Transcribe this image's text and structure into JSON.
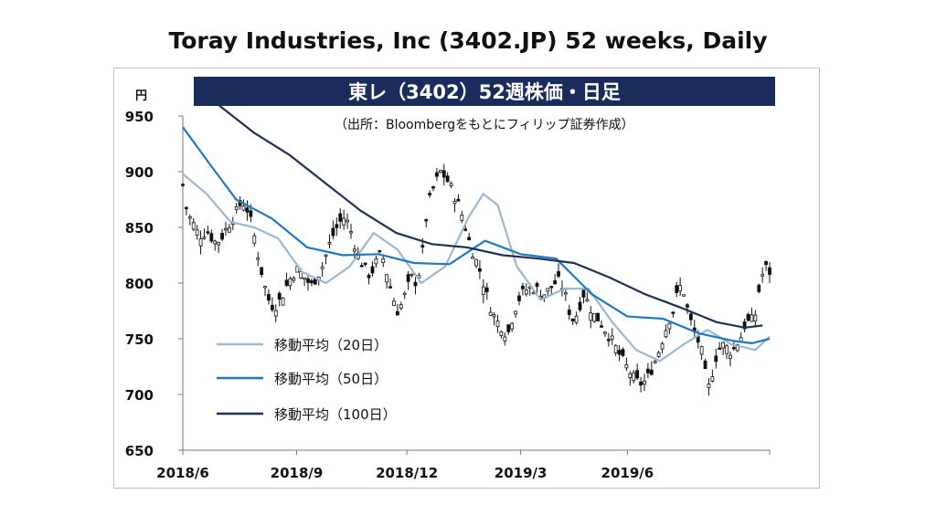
{
  "title": "Toray Industries, Inc (3402.JP) 52 weeks, Daily",
  "chart_data": {
    "type": "line",
    "title": "東レ（3402）52週株価・日足",
    "subtitle": "（出所：Bloombergをもとにフィリップ証券作成）",
    "ylabel": "円",
    "ylim": [
      650,
      950
    ],
    "yticks": [
      "650",
      "700",
      "750",
      "800",
      "850",
      "900",
      "950"
    ],
    "xticks": [
      "2018/6",
      "2018/9",
      "2018/12",
      "2019/3",
      "2019/6"
    ],
    "grid": false,
    "legend_position": "bottom-left",
    "price_points": [
      [
        0,
        888
      ],
      [
        1,
        862
      ],
      [
        2,
        855
      ],
      [
        3,
        846
      ],
      [
        4,
        842
      ],
      [
        5,
        848
      ],
      [
        6,
        841
      ],
      [
        7,
        836
      ],
      [
        8,
        840
      ],
      [
        9,
        848
      ],
      [
        10,
        855
      ],
      [
        11,
        862
      ],
      [
        12,
        870
      ],
      [
        13,
        872
      ],
      [
        14,
        860
      ],
      [
        15,
        842
      ],
      [
        16,
        820
      ],
      [
        17,
        800
      ],
      [
        18,
        785
      ],
      [
        19,
        778
      ],
      [
        20,
        782
      ],
      [
        21,
        790
      ],
      [
        22,
        800
      ],
      [
        23,
        808
      ],
      [
        24,
        812
      ],
      [
        25,
        808
      ],
      [
        26,
        802
      ],
      [
        27,
        798
      ],
      [
        28,
        805
      ],
      [
        29,
        812
      ],
      [
        30,
        825
      ],
      [
        31,
        838
      ],
      [
        32,
        848
      ],
      [
        33,
        855
      ],
      [
        34,
        860
      ],
      [
        35,
        850
      ],
      [
        36,
        835
      ],
      [
        37,
        822
      ],
      [
        38,
        815
      ],
      [
        39,
        808
      ],
      [
        40,
        812
      ],
      [
        41,
        825
      ],
      [
        42,
        822
      ],
      [
        43,
        805
      ],
      [
        44,
        788
      ],
      [
        45,
        775
      ],
      [
        46,
        782
      ],
      [
        47,
        795
      ],
      [
        48,
        805
      ],
      [
        49,
        800
      ],
      [
        50,
        818
      ],
      [
        51,
        858
      ],
      [
        52,
        880
      ],
      [
        53,
        890
      ],
      [
        54,
        900
      ],
      [
        55,
        895
      ],
      [
        56,
        888
      ],
      [
        57,
        878
      ],
      [
        58,
        868
      ],
      [
        59,
        855
      ],
      [
        60,
        838
      ],
      [
        61,
        825
      ],
      [
        62,
        815
      ],
      [
        63,
        800
      ],
      [
        64,
        785
      ],
      [
        65,
        772
      ],
      [
        66,
        765
      ],
      [
        67,
        760
      ],
      [
        68,
        752
      ],
      [
        69,
        768
      ],
      [
        70,
        782
      ],
      [
        71,
        790
      ],
      [
        72,
        794
      ],
      [
        73,
        796
      ],
      [
        74,
        795
      ],
      [
        75,
        792
      ],
      [
        76,
        790
      ],
      [
        77,
        796
      ],
      [
        78,
        800
      ],
      [
        79,
        802
      ],
      [
        80,
        792
      ],
      [
        81,
        775
      ],
      [
        82,
        765
      ],
      [
        83,
        778
      ],
      [
        84,
        790
      ],
      [
        85,
        782
      ],
      [
        86,
        772
      ],
      [
        87,
        768
      ],
      [
        88,
        762
      ],
      [
        89,
        755
      ],
      [
        90,
        748
      ],
      [
        91,
        740
      ],
      [
        92,
        732
      ],
      [
        93,
        725
      ],
      [
        94,
        718
      ],
      [
        95,
        712
      ],
      [
        96,
        710
      ],
      [
        97,
        712
      ],
      [
        98,
        720
      ],
      [
        99,
        730
      ],
      [
        100,
        742
      ],
      [
        101,
        756
      ],
      [
        102,
        768
      ],
      [
        103,
        778
      ],
      [
        104,
        798
      ],
      [
        105,
        792
      ],
      [
        106,
        772
      ],
      [
        107,
        758
      ],
      [
        108,
        748
      ],
      [
        109,
        735
      ],
      [
        110,
        702
      ],
      [
        111,
        720
      ],
      [
        112,
        738
      ],
      [
        113,
        745
      ],
      [
        114,
        742
      ],
      [
        115,
        738
      ],
      [
        116,
        745
      ],
      [
        117,
        752
      ],
      [
        118,
        765
      ],
      [
        119,
        765
      ],
      [
        120,
        772
      ],
      [
        121,
        800
      ],
      [
        122,
        815
      ],
      [
        123,
        810
      ]
    ],
    "series": [
      {
        "name": "移動平均（20日）",
        "color": "#9ab7d4",
        "points": [
          [
            0,
            898
          ],
          [
            5,
            880
          ],
          [
            10,
            855
          ],
          [
            15,
            850
          ],
          [
            20,
            840
          ],
          [
            25,
            810
          ],
          [
            30,
            800
          ],
          [
            35,
            815
          ],
          [
            40,
            845
          ],
          [
            45,
            830
          ],
          [
            50,
            800
          ],
          [
            55,
            815
          ],
          [
            60,
            860
          ],
          [
            63,
            880
          ],
          [
            66,
            870
          ],
          [
            70,
            815
          ],
          [
            75,
            785
          ],
          [
            80,
            795
          ],
          [
            85,
            795
          ],
          [
            90,
            765
          ],
          [
            95,
            740
          ],
          [
            100,
            730
          ],
          [
            105,
            745
          ],
          [
            110,
            758
          ],
          [
            115,
            745
          ],
          [
            120,
            740
          ],
          [
            123,
            752
          ]
        ]
      },
      {
        "name": "移動平均（50日）",
        "color": "#1f78c1",
        "points": [
          [
            0,
            940
          ],
          [
            8,
            905
          ],
          [
            15,
            875
          ],
          [
            25,
            858
          ],
          [
            35,
            832
          ],
          [
            45,
            825
          ],
          [
            55,
            826
          ],
          [
            65,
            818
          ],
          [
            75,
            817
          ],
          [
            85,
            838
          ],
          [
            95,
            826
          ],
          [
            105,
            822
          ],
          [
            115,
            790
          ],
          [
            125,
            770
          ],
          [
            135,
            768
          ],
          [
            145,
            755
          ],
          [
            155,
            748
          ],
          [
            160,
            746
          ],
          [
            165,
            750
          ]
        ]
      },
      {
        "name": "移動平均（100日）",
        "color": "#1f3355",
        "points": [
          [
            10,
            960
          ],
          [
            20,
            935
          ],
          [
            30,
            915
          ],
          [
            40,
            890
          ],
          [
            50,
            865
          ],
          [
            60,
            845
          ],
          [
            70,
            835
          ],
          [
            80,
            832
          ],
          [
            90,
            825
          ],
          [
            100,
            822
          ],
          [
            110,
            818
          ],
          [
            120,
            805
          ],
          [
            130,
            790
          ],
          [
            140,
            778
          ],
          [
            150,
            765
          ],
          [
            158,
            760
          ],
          [
            163,
            762
          ]
        ]
      }
    ]
  }
}
